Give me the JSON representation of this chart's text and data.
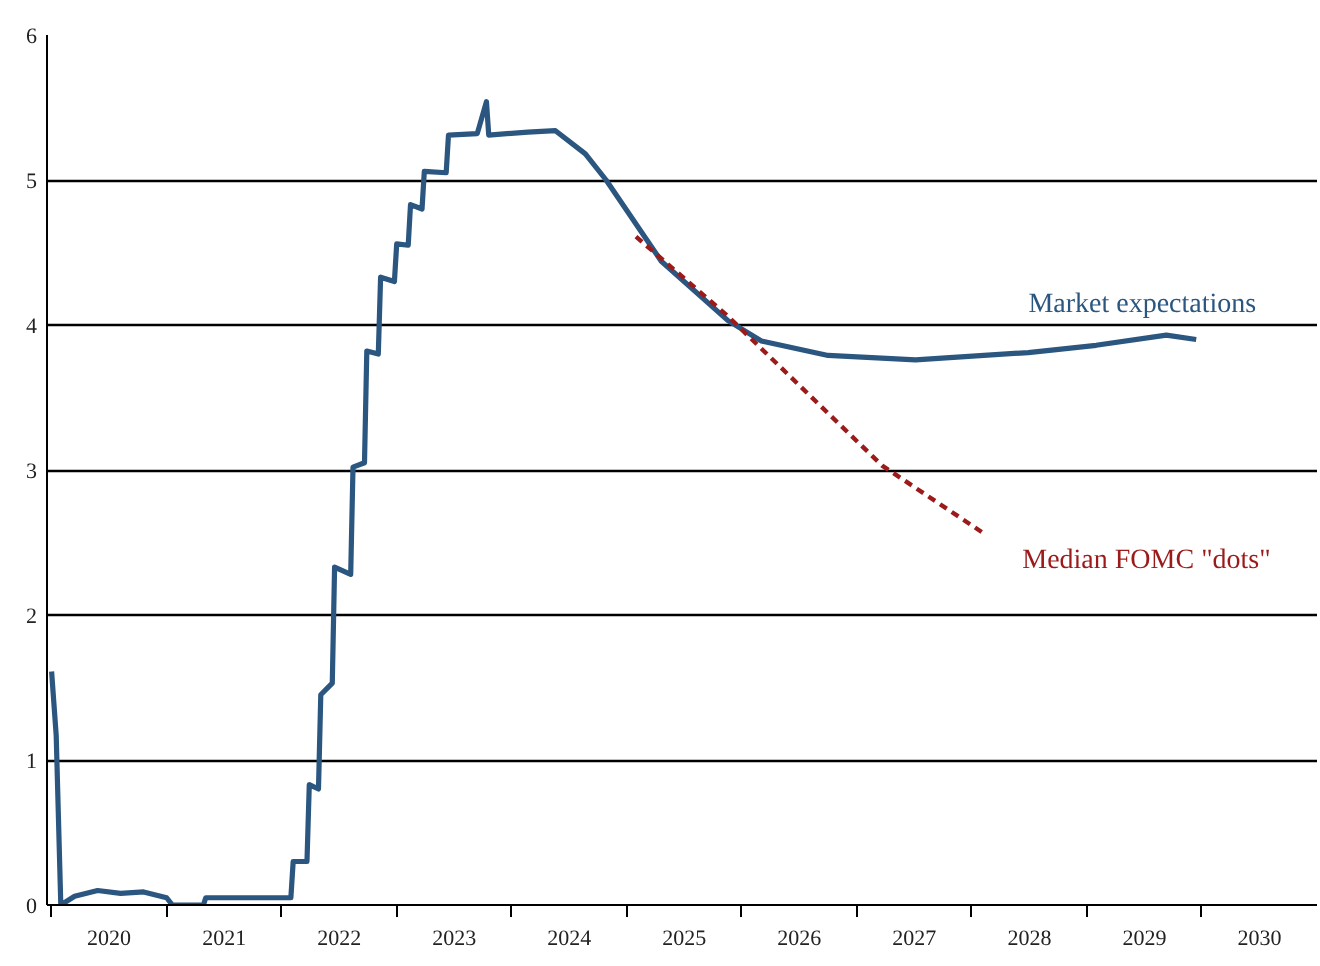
{
  "chart_data": {
    "type": "line",
    "xlim": [
      2019.96,
      2031.0
    ],
    "ylim": [
      0,
      6
    ],
    "xticks": [
      {
        "value": 2020,
        "label": null
      },
      {
        "value": 2020.5,
        "label": "2020"
      },
      {
        "value": 2021,
        "label": null
      },
      {
        "value": 2021.5,
        "label": "2021"
      },
      {
        "value": 2022,
        "label": null
      },
      {
        "value": 2022.5,
        "label": "2022"
      },
      {
        "value": 2023,
        "label": null
      },
      {
        "value": 2023.5,
        "label": "2023"
      },
      {
        "value": 2024,
        "label": null
      },
      {
        "value": 2024.5,
        "label": "2024"
      },
      {
        "value": 2025,
        "label": null
      },
      {
        "value": 2025.5,
        "label": "2025"
      },
      {
        "value": 2026,
        "label": null
      },
      {
        "value": 2026.5,
        "label": "2026"
      },
      {
        "value": 2027,
        "label": null
      },
      {
        "value": 2027.5,
        "label": "2027"
      },
      {
        "value": 2028,
        "label": null
      },
      {
        "value": 2028.5,
        "label": "2028"
      },
      {
        "value": 2029,
        "label": null
      },
      {
        "value": 2029.5,
        "label": "2029"
      },
      {
        "value": 2030,
        "label": null
      },
      {
        "value": 2030.5,
        "label": "2030"
      }
    ],
    "yticks": [
      0,
      1,
      2,
      3,
      4,
      5,
      6
    ],
    "grid": "y",
    "series": [
      {
        "name": "Market expectations",
        "color": "#2b5680",
        "line_style": "solid",
        "x": [
          2020.0,
          2020.04,
          2020.08,
          2020.2,
          2020.4,
          2020.6,
          2020.8,
          2021.0,
          2021.05,
          2021.32,
          2021.34,
          2022.08,
          2022.1,
          2022.22,
          2022.24,
          2022.32,
          2022.34,
          2022.44,
          2022.46,
          2022.6,
          2022.62,
          2022.72,
          2022.74,
          2022.84,
          2022.86,
          2022.98,
          2023.0,
          2023.1,
          2023.12,
          2023.22,
          2023.24,
          2023.43,
          2023.45,
          2023.7,
          2023.78,
          2023.8,
          2024.14,
          2024.38,
          2024.64,
          2024.82,
          2025.3,
          2025.88,
          2026.17,
          2026.75,
          2027.51,
          2028.49,
          2029.08,
          2029.69,
          2029.95
        ],
        "values": [
          1.61,
          1.17,
          0.0,
          0.06,
          0.1,
          0.08,
          0.09,
          0.05,
          0.0,
          0.0,
          0.05,
          0.05,
          0.3,
          0.3,
          0.83,
          0.8,
          1.45,
          1.53,
          2.33,
          2.28,
          3.02,
          3.05,
          3.82,
          3.8,
          4.33,
          4.3,
          4.56,
          4.55,
          4.83,
          4.8,
          5.06,
          5.05,
          5.31,
          5.32,
          5.54,
          5.31,
          5.33,
          5.34,
          5.18,
          5.0,
          4.44,
          4.03,
          3.89,
          3.79,
          3.76,
          3.81,
          3.86,
          3.93,
          3.9
        ]
      },
      {
        "name": "Median FOMC \"dots\"",
        "color": "#9b1b1b",
        "line_style": "dashed",
        "x": [
          2025.08,
          2025.88,
          2027.22,
          2028.09
        ],
        "values": [
          4.61,
          4.06,
          3.03,
          2.57
        ]
      }
    ]
  }
}
